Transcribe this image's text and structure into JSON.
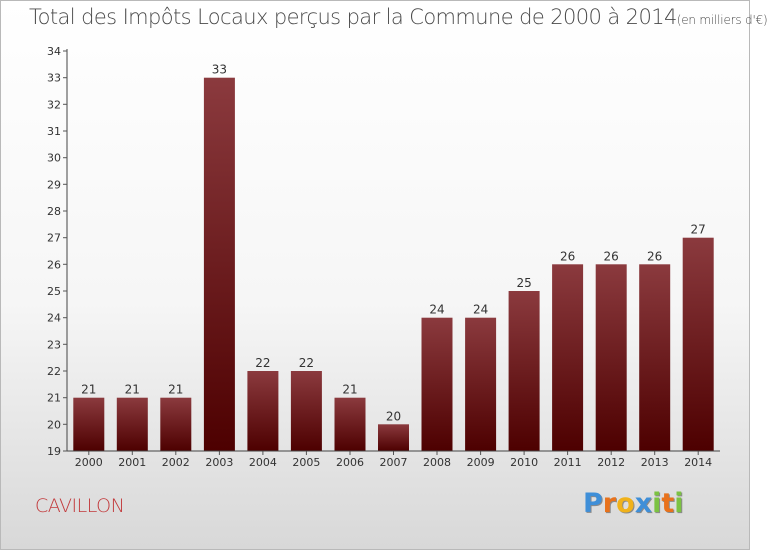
{
  "title": "Total des Impôts Locaux perçus par la Commune de 2000 à 2014",
  "title_unit": "(en milliers d'€)",
  "commune": "CAVILLON",
  "logo": {
    "letters": [
      "P",
      "r",
      "o",
      "x",
      "i",
      "t",
      "i"
    ],
    "colors": [
      "#3f8fd8",
      "#e8721c",
      "#f0b21b",
      "#3f8fd8",
      "#7cc242",
      "#e8721c",
      "#7cc242"
    ]
  },
  "chart_data": {
    "type": "bar",
    "title": "Total des Impôts Locaux perçus par la Commune de 2000 à 2014 (en milliers d'€)",
    "xlabel": "",
    "ylabel": "",
    "categories": [
      "2000",
      "2001",
      "2002",
      "2003",
      "2004",
      "2005",
      "2006",
      "2007",
      "2008",
      "2009",
      "2010",
      "2011",
      "2012",
      "2013",
      "2014"
    ],
    "values": [
      21,
      21,
      21,
      33,
      22,
      22,
      21,
      20,
      24,
      24,
      25,
      26,
      26,
      26,
      27
    ],
    "ylim": [
      19,
      34
    ],
    "yticks": [
      19,
      20,
      21,
      22,
      23,
      24,
      25,
      26,
      27,
      28,
      29,
      30,
      31,
      32,
      33,
      34
    ],
    "grid": false,
    "legend": "none",
    "bar_color_top": "#8b3a3e",
    "bar_color_bottom": "#4d0000"
  }
}
